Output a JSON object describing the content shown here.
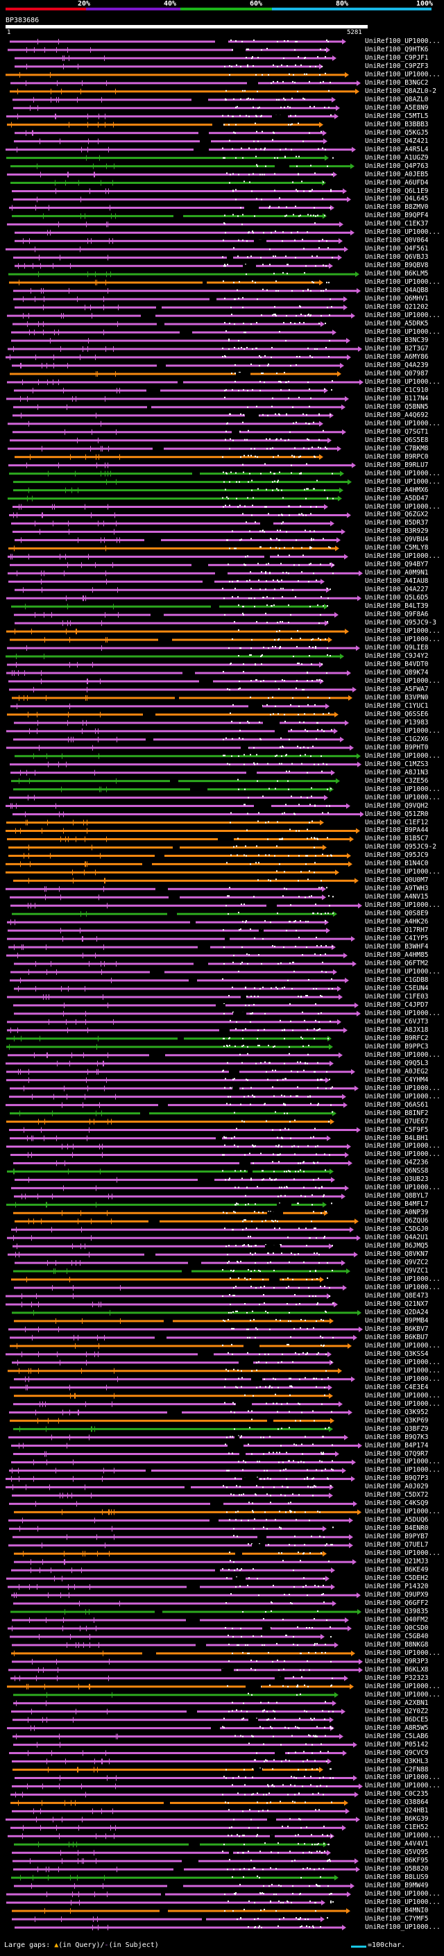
{
  "legend": {
    "ticks": [
      "20%",
      "40%",
      "60%",
      "80%",
      "100%"
    ],
    "colors": [
      "#e5001a",
      "#7a17c8",
      "#1cb41a",
      "#18b6e5"
    ]
  },
  "query": {
    "name": "BP383686",
    "start": "1",
    "end": "5281"
  },
  "colors": {
    "orange": "#f5880f",
    "purple": "#d065d8",
    "green": "#2ca81e",
    "cyan": "#18b6e5",
    "white_dots": "#ffffff"
  },
  "hits": [
    {
      "label": "UniRef100_UP1000...",
      "color": "purple"
    },
    {
      "label": "UniRef100_Q9HTK6",
      "color": "purple"
    },
    {
      "label": "UniRef100_C9PJF1",
      "color": "purple"
    },
    {
      "label": "UniRef100_C9PZF3",
      "color": "purple"
    },
    {
      "label": "UniRef100_UP1000...",
      "color": "orange"
    },
    {
      "label": "UniRef100_B3NGC2",
      "color": "purple"
    },
    {
      "label": "UniRef100_Q8AZL0-2",
      "color": "orange"
    },
    {
      "label": "UniRef100_Q8AZL0",
      "color": "purple"
    },
    {
      "label": "UniRef100_A5E8N9",
      "color": "purple"
    },
    {
      "label": "UniRef100_C5MTL5",
      "color": "purple"
    },
    {
      "label": "UniRef100_B3BBB3",
      "color": "orange"
    },
    {
      "label": "UniRef100_Q5KGJ5",
      "color": "purple"
    },
    {
      "label": "UniRef100_Q4Z421",
      "color": "purple"
    },
    {
      "label": "UniRef100_A4R5L4",
      "color": "purple"
    },
    {
      "label": "UniRef100_A1UGZ9",
      "color": "green"
    },
    {
      "label": "UniRef100_Q4P763",
      "color": "green"
    },
    {
      "label": "UniRef100_A0JEB5",
      "color": "purple"
    },
    {
      "label": "UniRef100_A6UFD4",
      "color": "green"
    },
    {
      "label": "UniRef100_Q6L1E9",
      "color": "purple"
    },
    {
      "label": "UniRef100_Q4L645",
      "color": "purple"
    },
    {
      "label": "UniRef100_B8ZMV0",
      "color": "purple"
    },
    {
      "label": "UniRef100_B9QPF4",
      "color": "green"
    },
    {
      "label": "UniRef100_C1EK37",
      "color": "purple"
    },
    {
      "label": "UniRef100_UP1000...",
      "color": "purple"
    },
    {
      "label": "UniRef100_Q0V064",
      "color": "purple"
    },
    {
      "label": "UniRef100_Q4F561",
      "color": "purple"
    },
    {
      "label": "UniRef100_Q6VBJ3",
      "color": "purple"
    },
    {
      "label": "UniRef100_B9QBV8",
      "color": "purple"
    },
    {
      "label": "UniRef100_B6KLM5",
      "color": "green"
    },
    {
      "label": "UniRef100_UP1000...",
      "color": "orange"
    },
    {
      "label": "UniRef100_Q4AQB8",
      "color": "purple"
    },
    {
      "label": "UniRef100_Q6MHV1",
      "color": "purple"
    },
    {
      "label": "UniRef100_Q21202",
      "color": "purple"
    },
    {
      "label": "UniRef100_UP1000...",
      "color": "purple"
    },
    {
      "label": "UniRef100_A5DRK5",
      "color": "purple"
    },
    {
      "label": "UniRef100_UP1000...",
      "color": "purple"
    },
    {
      "label": "UniRef100_B3NC39",
      "color": "purple"
    },
    {
      "label": "UniRef100_B2T3G7",
      "color": "purple"
    },
    {
      "label": "UniRef100_A6MY86",
      "color": "purple"
    },
    {
      "label": "UniRef100_Q4A239",
      "color": "purple"
    },
    {
      "label": "UniRef100_Q07987",
      "color": "orange"
    },
    {
      "label": "UniRef100_UP1000...",
      "color": "purple"
    },
    {
      "label": "UniRef100_C1C910",
      "color": "purple"
    },
    {
      "label": "UniRef100_B117N4",
      "color": "purple"
    },
    {
      "label": "UniRef100_Q5BNN5",
      "color": "purple"
    },
    {
      "label": "UniRef100_A4Q692",
      "color": "purple"
    },
    {
      "label": "UniRef100_UP1000...",
      "color": "purple"
    },
    {
      "label": "UniRef100_Q7SGT1",
      "color": "purple"
    },
    {
      "label": "UniRef100_Q6S5E8",
      "color": "purple"
    },
    {
      "label": "UniRef100_C7BKM8",
      "color": "purple"
    },
    {
      "label": "UniRef100_B9RPC0",
      "color": "orange"
    },
    {
      "label": "UniRef100_B9RLU7",
      "color": "purple"
    },
    {
      "label": "UniRef100_UP1000...",
      "color": "green"
    },
    {
      "label": "UniRef100_UP1000...",
      "color": "green"
    },
    {
      "label": "UniRef100_A4HMX6",
      "color": "green"
    },
    {
      "label": "UniRef100_A5DD47",
      "color": "green"
    },
    {
      "label": "UniRef100_UP1000...",
      "color": "purple"
    },
    {
      "label": "UniRef100_Q6ZGX2",
      "color": "purple"
    },
    {
      "label": "UniRef100_B5DR37",
      "color": "purple"
    },
    {
      "label": "UniRef100_B3R929",
      "color": "purple"
    },
    {
      "label": "UniRef100_Q9VBU4",
      "color": "purple"
    },
    {
      "label": "UniRef100_C5MLY8",
      "color": "orange"
    },
    {
      "label": "UniRef100_UP1000...",
      "color": "purple"
    },
    {
      "label": "UniRef100_Q94BY7",
      "color": "purple"
    },
    {
      "label": "UniRef100_A0M9N1",
      "color": "purple"
    },
    {
      "label": "UniRef100_A4IAU8",
      "color": "purple"
    },
    {
      "label": "UniRef100_Q4A227",
      "color": "purple"
    },
    {
      "label": "UniRef100_Q5L6D5",
      "color": "purple"
    },
    {
      "label": "UniRef100_B4LT39",
      "color": "green"
    },
    {
      "label": "UniRef100_Q9F8A6",
      "color": "purple"
    },
    {
      "label": "UniRef100_Q95JC9-3",
      "color": "purple"
    },
    {
      "label": "UniRef100_UP1000...",
      "color": "orange"
    },
    {
      "label": "UniRef100_UP1000...",
      "color": "orange"
    },
    {
      "label": "UniRef100_Q9LIE8",
      "color": "purple"
    },
    {
      "label": "UniRef100_C9J4Y2",
      "color": "green"
    },
    {
      "label": "UniRef100_B4VDT0",
      "color": "purple"
    },
    {
      "label": "UniRef100_Q89K74",
      "color": "purple"
    },
    {
      "label": "UniRef100_UP1000...",
      "color": "purple"
    },
    {
      "label": "UniRef100_A5FWA7",
      "color": "purple"
    },
    {
      "label": "UniRef100_B3VPN0",
      "color": "orange"
    },
    {
      "label": "UniRef100_C1YUC1",
      "color": "purple"
    },
    {
      "label": "UniRef100_Q6SSE6",
      "color": "orange"
    },
    {
      "label": "UniRef100_P13983",
      "color": "purple"
    },
    {
      "label": "UniRef100_UP1000...",
      "color": "purple"
    },
    {
      "label": "UniRef100_C1G2X6",
      "color": "purple"
    },
    {
      "label": "UniRef100_B9PHT0",
      "color": "purple"
    },
    {
      "label": "UniRef100_UP1000...",
      "color": "green"
    },
    {
      "label": "UniRef100_C1MZS3",
      "color": "purple"
    },
    {
      "label": "UniRef100_A8J1N3",
      "color": "purple"
    },
    {
      "label": "UniRef100_C3ZE56",
      "color": "green"
    },
    {
      "label": "UniRef100_UP1000...",
      "color": "green"
    },
    {
      "label": "UniRef100_UP1000...",
      "color": "purple"
    },
    {
      "label": "UniRef100_Q9VQH2",
      "color": "purple"
    },
    {
      "label": "UniRef100_Q51ZR0",
      "color": "purple"
    },
    {
      "label": "UniRef100_C1EF12",
      "color": "orange"
    },
    {
      "label": "UniRef100_B9PA44",
      "color": "orange"
    },
    {
      "label": "UniRef100_B1B5C7",
      "color": "orange"
    },
    {
      "label": "UniRef100_Q95JC9-2",
      "color": "orange"
    },
    {
      "label": "UniRef100_Q95JC9",
      "color": "orange"
    },
    {
      "label": "UniRef100_B1N4C0",
      "color": "orange"
    },
    {
      "label": "UniRef100_UP1000...",
      "color": "orange"
    },
    {
      "label": "UniRef100_Q0U0M7",
      "color": "orange"
    },
    {
      "label": "UniRef100_A9TWH3",
      "color": "purple"
    },
    {
      "label": "UniRef100_A4NV15",
      "color": "purple"
    },
    {
      "label": "UniRef100_UP1000...",
      "color": "purple"
    },
    {
      "label": "UniRef100_Q0S8E9",
      "color": "green"
    },
    {
      "label": "UniRef100_A4HK26",
      "color": "purple"
    },
    {
      "label": "UniRef100_Q17RH7",
      "color": "purple"
    },
    {
      "label": "UniRef100_C4IYP5",
      "color": "purple"
    },
    {
      "label": "UniRef100_B3WHF4",
      "color": "purple"
    },
    {
      "label": "UniRef100_A4HM85",
      "color": "purple"
    },
    {
      "label": "UniRef100_Q6FTM2",
      "color": "purple"
    },
    {
      "label": "UniRef100_UP1000...",
      "color": "purple"
    },
    {
      "label": "UniRef100_C1GDB8",
      "color": "purple"
    },
    {
      "label": "UniRef100_C5EUN4",
      "color": "purple"
    },
    {
      "label": "UniRef100_C1FE03",
      "color": "purple"
    },
    {
      "label": "UniRef100_C4JPD7",
      "color": "purple"
    },
    {
      "label": "UniRef100_UP1000...",
      "color": "purple"
    },
    {
      "label": "UniRef100_C6VJT3",
      "color": "purple"
    },
    {
      "label": "UniRef100_A8JX18",
      "color": "purple"
    },
    {
      "label": "UniRef100_B9RFC2",
      "color": "green"
    },
    {
      "label": "UniRef100_B9PPC3",
      "color": "green"
    },
    {
      "label": "UniRef100_UP1000...",
      "color": "purple"
    },
    {
      "label": "UniRef100_Q9Q5L3",
      "color": "purple"
    },
    {
      "label": "UniRef100_A0JEG2",
      "color": "purple"
    },
    {
      "label": "UniRef100_C4YHM4",
      "color": "purple"
    },
    {
      "label": "UniRef100_UP1000...",
      "color": "purple"
    },
    {
      "label": "UniRef100_UP1000...",
      "color": "purple"
    },
    {
      "label": "UniRef100_Q6AS61",
      "color": "purple"
    },
    {
      "label": "UniRef100_B8INF2",
      "color": "green"
    },
    {
      "label": "UniRef100_Q7UE67",
      "color": "orange"
    },
    {
      "label": "UniRef100_C5F9F5",
      "color": "purple"
    },
    {
      "label": "UniRef100_B4LBH1",
      "color": "purple"
    },
    {
      "label": "UniRef100_UP1000...",
      "color": "purple"
    },
    {
      "label": "UniRef100_UP1000...",
      "color": "purple"
    },
    {
      "label": "UniRef100_Q4Z236",
      "color": "purple"
    },
    {
      "label": "UniRef100_Q6NSS8",
      "color": "green"
    },
    {
      "label": "UniRef100_Q3UB23",
      "color": "purple"
    },
    {
      "label": "UniRef100_UP1000...",
      "color": "purple"
    },
    {
      "label": "UniRef100_Q8BYL7",
      "color": "purple"
    },
    {
      "label": "UniRef100_B4MFL7",
      "color": "green"
    },
    {
      "label": "UniRef100_A0NP39",
      "color": "orange"
    },
    {
      "label": "UniRef100_Q6ZQU6",
      "color": "orange"
    },
    {
      "label": "UniRef100_C5DGJ0",
      "color": "purple"
    },
    {
      "label": "UniRef100_Q4A2U1",
      "color": "purple"
    },
    {
      "label": "UniRef100_B6JMQ5",
      "color": "purple"
    },
    {
      "label": "UniRef100_Q8VKN7",
      "color": "purple"
    },
    {
      "label": "UniRef100_Q9VZC2",
      "color": "purple"
    },
    {
      "label": "UniRef100_Q9VZC1",
      "color": "green"
    },
    {
      "label": "UniRef100_UP1000...",
      "color": "orange"
    },
    {
      "label": "UniRef100_UP1000...",
      "color": "purple"
    },
    {
      "label": "UniRef100_Q8E473",
      "color": "purple"
    },
    {
      "label": "UniRef100_Q21NX7",
      "color": "purple"
    },
    {
      "label": "UniRef100_Q2DA24",
      "color": "green"
    },
    {
      "label": "UniRef100_B9PMB4",
      "color": "orange"
    },
    {
      "label": "UniRef100_B6KBV7",
      "color": "purple"
    },
    {
      "label": "UniRef100_B6KBU7",
      "color": "purple"
    },
    {
      "label": "UniRef100_UP1000...",
      "color": "orange"
    },
    {
      "label": "UniRef100_Q3KSS4",
      "color": "purple"
    },
    {
      "label": "UniRef100_UP1000...",
      "color": "purple"
    },
    {
      "label": "UniRef100_UP1000...",
      "color": "orange"
    },
    {
      "label": "UniRef100_UP1000...",
      "color": "purple"
    },
    {
      "label": "UniRef100_C4E3E4",
      "color": "purple"
    },
    {
      "label": "UniRef100_UP1000...",
      "color": "orange"
    },
    {
      "label": "UniRef100_UP1000...",
      "color": "purple"
    },
    {
      "label": "UniRef100_Q3K952",
      "color": "purple"
    },
    {
      "label": "UniRef100_Q3KP69",
      "color": "orange"
    },
    {
      "label": "UniRef100_Q3BFZ9",
      "color": "green"
    },
    {
      "label": "UniRef100_B9Q7K3",
      "color": "purple"
    },
    {
      "label": "UniRef100_B4P174",
      "color": "purple"
    },
    {
      "label": "UniRef100_Q7Q9R7",
      "color": "purple"
    },
    {
      "label": "UniRef100_UP1000...",
      "color": "purple"
    },
    {
      "label": "UniRef100_UP1000...",
      "color": "purple"
    },
    {
      "label": "UniRef100_B9Q7P3",
      "color": "purple"
    },
    {
      "label": "UniRef100_A0J029",
      "color": "purple"
    },
    {
      "label": "UniRef100_C5DX72",
      "color": "purple"
    },
    {
      "label": "UniRef100_C4KSQ9",
      "color": "purple"
    },
    {
      "label": "UniRef100_UP1000...",
      "color": "orange"
    },
    {
      "label": "UniRef100_A5DUQ6",
      "color": "purple"
    },
    {
      "label": "UniRef100_B4ENR0",
      "color": "purple"
    },
    {
      "label": "UniRef100_B9PYB7",
      "color": "purple"
    },
    {
      "label": "UniRef100_Q7UEL7",
      "color": "purple"
    },
    {
      "label": "UniRef100_UP1000...",
      "color": "orange"
    },
    {
      "label": "UniRef100_Q21MJ3",
      "color": "purple"
    },
    {
      "label": "UniRef100_B6KE49",
      "color": "purple"
    },
    {
      "label": "UniRef100_C5DEH2",
      "color": "purple"
    },
    {
      "label": "UniRef100_P14320",
      "color": "purple"
    },
    {
      "label": "UniRef100_Q9UPX9",
      "color": "purple"
    },
    {
      "label": "UniRef100_Q6GFF2",
      "color": "purple"
    },
    {
      "label": "UniRef100_Q39835",
      "color": "green"
    },
    {
      "label": "UniRef100_Q40FM2",
      "color": "purple"
    },
    {
      "label": "UniRef100_Q0CSD0",
      "color": "purple"
    },
    {
      "label": "UniRef100_C5GB40",
      "color": "purple"
    },
    {
      "label": "UniRef100_B8NKG8",
      "color": "purple"
    },
    {
      "label": "UniRef100_UP1000...",
      "color": "orange"
    },
    {
      "label": "UniRef100_Q9R3P3",
      "color": "purple"
    },
    {
      "label": "UniRef100_B6KLX8",
      "color": "purple"
    },
    {
      "label": "UniRef100_P32323",
      "color": "purple"
    },
    {
      "label": "UniRef100_UP1000...",
      "color": "orange"
    },
    {
      "label": "UniRef100_UP1000...",
      "color": "green"
    },
    {
      "label": "UniRef100_A2XBN1",
      "color": "purple"
    },
    {
      "label": "UniRef100_Q2Y0Z2",
      "color": "purple"
    },
    {
      "label": "UniRef100_B6DCE5",
      "color": "purple"
    },
    {
      "label": "UniRef100_A8R5W5",
      "color": "purple"
    },
    {
      "label": "UniRef100_C5LAB6",
      "color": "purple"
    },
    {
      "label": "UniRef100_P05142",
      "color": "purple"
    },
    {
      "label": "UniRef100_Q9CVC9",
      "color": "purple"
    },
    {
      "label": "UniRef100_Q3KHL3",
      "color": "purple"
    },
    {
      "label": "UniRef100_C2FN88",
      "color": "orange"
    },
    {
      "label": "UniRef100_UP1000...",
      "color": "purple"
    },
    {
      "label": "UniRef100_UP1000...",
      "color": "purple"
    },
    {
      "label": "UniRef100_C0C235",
      "color": "purple"
    },
    {
      "label": "UniRef100_Q38864",
      "color": "orange"
    },
    {
      "label": "UniRef100_Q24HB1",
      "color": "purple"
    },
    {
      "label": "UniRef100_B6KG39",
      "color": "purple"
    },
    {
      "label": "UniRef100_C1EH52",
      "color": "purple"
    },
    {
      "label": "UniRef100_UP1000...",
      "color": "purple"
    },
    {
      "label": "UniRef100_A4V4V1",
      "color": "green"
    },
    {
      "label": "UniRef100_Q5VQ95",
      "color": "purple"
    },
    {
      "label": "UniRef100_B6KF95",
      "color": "purple"
    },
    {
      "label": "UniRef100_Q5B820",
      "color": "purple"
    },
    {
      "label": "UniRef100_B8LUS9",
      "color": "green"
    },
    {
      "label": "UniRef100_B9MW49",
      "color": "purple"
    },
    {
      "label": "UniRef100_UP1000...",
      "color": "purple"
    },
    {
      "label": "UniRef100_UP1000...",
      "color": "purple"
    },
    {
      "label": "UniRef100_B4MNI0",
      "color": "orange"
    },
    {
      "label": "UniRef100_C7YMF5",
      "color": "purple"
    },
    {
      "label": "UniRef100_UP1000...",
      "color": "purple"
    }
  ],
  "footer": {
    "left_prefix": "Large gaps: ",
    "mark_query": "▲",
    "query_text": "(in Query)",
    "slash": "/",
    "mark_subject": "-",
    "subject_text": "(in Subject)",
    "scale_text": "=100char."
  }
}
